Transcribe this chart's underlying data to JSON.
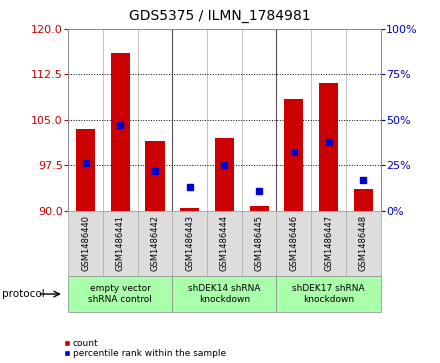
{
  "title": "GDS5375 / ILMN_1784981",
  "samples": [
    "GSM1486440",
    "GSM1486441",
    "GSM1486442",
    "GSM1486443",
    "GSM1486444",
    "GSM1486445",
    "GSM1486446",
    "GSM1486447",
    "GSM1486448"
  ],
  "counts": [
    103.5,
    116.0,
    101.5,
    90.5,
    102.0,
    90.8,
    108.5,
    111.0,
    93.5
  ],
  "percentiles": [
    26,
    47,
    22,
    13,
    25,
    11,
    32,
    38,
    17
  ],
  "ylim_left": [
    90,
    120
  ],
  "ylim_right": [
    0,
    100
  ],
  "yticks_left": [
    90,
    97.5,
    105,
    112.5,
    120
  ],
  "yticks_right": [
    0,
    25,
    50,
    75,
    100
  ],
  "bar_color": "#cc0000",
  "dot_color": "#0000cc",
  "bar_bottom": 90,
  "group_labels": [
    "empty vector\nshRNA control",
    "shDEK14 shRNA\nknockdown",
    "shDEK17 shRNA\nknockdown"
  ],
  "group_ranges": [
    [
      0,
      3
    ],
    [
      3,
      6
    ],
    [
      6,
      9
    ]
  ],
  "group_color": "#aaffaa",
  "cell_color": "#dddddd",
  "protocol_label": "protocol",
  "legend_count": "count",
  "legend_percentile": "percentile rank within the sample",
  "background_color": "#ffffff",
  "tick_color_left": "#cc0000",
  "tick_color_right": "#0000cc",
  "hgrid_lines": [
    97.5,
    105,
    112.5
  ],
  "title_fontsize": 10,
  "tick_fontsize": 8,
  "sample_fontsize": 6.0,
  "group_fontsize": 6.5,
  "legend_fontsize": 6.5
}
